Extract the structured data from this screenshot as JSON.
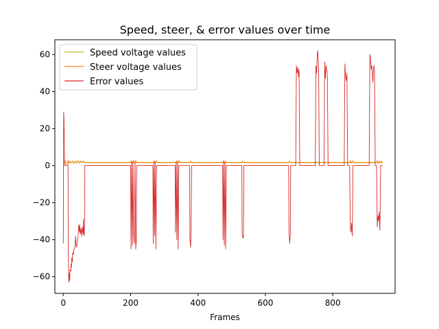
{
  "chart_data": {
    "type": "line",
    "title": "Speed, steer, & error values over time",
    "xlabel": "Frames",
    "ylabel": "",
    "xlim": [
      -25,
      985
    ],
    "ylim": [
      -69,
      68
    ],
    "x_ticks": [
      0,
      200,
      400,
      600,
      800
    ],
    "y_ticks": [
      -60,
      -40,
      -20,
      0,
      20,
      40,
      60
    ],
    "x_tick_labels": [
      "0",
      "200",
      "400",
      "600",
      "800"
    ],
    "y_tick_labels": [
      "−60",
      "−40",
      "−20",
      "0",
      "20",
      "40",
      "60"
    ],
    "grid": false,
    "legend_position": "upper-left",
    "series": [
      {
        "name": "Speed voltage values",
        "color": "#bcbd22",
        "points": [
          [
            0,
            2
          ],
          [
            3,
            2
          ],
          [
            4,
            1.8
          ],
          [
            950,
            1.8
          ]
        ]
      },
      {
        "name": "Steer voltage values",
        "color": "#ff7f0e",
        "points": [
          [
            0,
            0.5
          ],
          [
            3,
            0.5
          ],
          [
            5,
            3
          ],
          [
            7,
            1
          ],
          [
            12,
            0.5
          ],
          [
            14,
            3
          ],
          [
            16,
            1
          ],
          [
            20,
            2.5
          ],
          [
            24,
            1.5
          ],
          [
            28,
            2.5
          ],
          [
            32,
            1.2
          ],
          [
            36,
            2.5
          ],
          [
            40,
            1.3
          ],
          [
            44,
            2.8
          ],
          [
            48,
            1.3
          ],
          [
            52,
            2.5
          ],
          [
            56,
            1.6
          ],
          [
            60,
            2.5
          ],
          [
            64,
            1.5
          ],
          [
            66,
            1.5
          ],
          [
            200,
            1.5
          ],
          [
            202,
            2.8
          ],
          [
            205,
            1.2
          ],
          [
            208,
            2.8
          ],
          [
            212,
            1.5
          ],
          [
            215,
            2.8
          ],
          [
            218,
            1.5
          ],
          [
            268,
            1.5
          ],
          [
            270,
            2.8
          ],
          [
            273,
            1.5
          ],
          [
            277,
            2.7
          ],
          [
            280,
            1.5
          ],
          [
            335,
            1.5
          ],
          [
            337,
            2.8
          ],
          [
            340,
            1.2
          ],
          [
            344,
            2.8
          ],
          [
            347,
            1.5
          ],
          [
            376,
            1.5
          ],
          [
            378,
            2.5
          ],
          [
            382,
            1.5
          ],
          [
            474,
            1.5
          ],
          [
            476,
            2.8
          ],
          [
            479,
            1.2
          ],
          [
            482,
            2.5
          ],
          [
            485,
            1.5
          ],
          [
            530,
            1.5
          ],
          [
            532,
            2.5
          ],
          [
            536,
            1.5
          ],
          [
            670,
            1.5
          ],
          [
            672,
            2.5
          ],
          [
            675,
            1.5
          ],
          [
            850,
            1.5
          ],
          [
            852,
            2.8
          ],
          [
            855,
            1.2
          ],
          [
            858,
            2.7
          ],
          [
            862,
            1.5
          ],
          [
            930,
            1.5
          ],
          [
            932,
            2.8
          ],
          [
            935,
            1.2
          ],
          [
            938,
            2.5
          ],
          [
            941,
            1.4
          ],
          [
            944,
            2.4
          ],
          [
            948,
            1.5
          ]
        ]
      },
      {
        "name": "Error values",
        "color": "#d62728",
        "points": [
          [
            0,
            -42
          ],
          [
            1,
            29
          ],
          [
            2,
            25
          ],
          [
            4,
            0
          ],
          [
            14,
            0
          ],
          [
            15,
            -50
          ],
          [
            16,
            -60
          ],
          [
            17,
            -63
          ],
          [
            18,
            -58
          ],
          [
            19,
            -62
          ],
          [
            20,
            -56
          ],
          [
            22,
            -57
          ],
          [
            23,
            -53
          ],
          [
            24,
            -55
          ],
          [
            25,
            -50
          ],
          [
            27,
            -52
          ],
          [
            28,
            -47
          ],
          [
            30,
            -48
          ],
          [
            32,
            -45
          ],
          [
            35,
            -44
          ],
          [
            36,
            -38
          ],
          [
            38,
            -43
          ],
          [
            40,
            -44
          ],
          [
            42,
            -40
          ],
          [
            44,
            -38
          ],
          [
            46,
            -32
          ],
          [
            48,
            -36
          ],
          [
            49,
            -32
          ],
          [
            51,
            -37
          ],
          [
            53,
            -34
          ],
          [
            55,
            -38
          ],
          [
            57,
            -33
          ],
          [
            59,
            -37
          ],
          [
            60,
            -29
          ],
          [
            61,
            -36
          ],
          [
            62,
            -38
          ],
          [
            63,
            -33
          ],
          [
            64,
            0
          ],
          [
            200,
            0
          ],
          [
            201,
            -45
          ],
          [
            203,
            2
          ],
          [
            205,
            -43
          ],
          [
            207,
            2
          ],
          [
            209,
            -38
          ],
          [
            211,
            -42
          ],
          [
            213,
            2
          ],
          [
            215,
            -45
          ],
          [
            217,
            -40
          ],
          [
            218,
            0
          ],
          [
            266,
            0
          ],
          [
            267,
            -42
          ],
          [
            269,
            2
          ],
          [
            271,
            -38
          ],
          [
            273,
            2
          ],
          [
            275,
            -45
          ],
          [
            277,
            0
          ],
          [
            332,
            0
          ],
          [
            333,
            -36
          ],
          [
            335,
            2
          ],
          [
            337,
            -40
          ],
          [
            339,
            2
          ],
          [
            341,
            -45
          ],
          [
            343,
            0
          ],
          [
            375,
            0
          ],
          [
            376,
            -40
          ],
          [
            378,
            -44
          ],
          [
            379,
            -37
          ],
          [
            381,
            0
          ],
          [
            473,
            0
          ],
          [
            474,
            -40
          ],
          [
            476,
            2
          ],
          [
            478,
            -43
          ],
          [
            480,
            2
          ],
          [
            482,
            -45
          ],
          [
            484,
            0
          ],
          [
            530,
            0
          ],
          [
            531,
            -36
          ],
          [
            533,
            -39
          ],
          [
            535,
            -39
          ],
          [
            536,
            0
          ],
          [
            669,
            0
          ],
          [
            670,
            -35
          ],
          [
            672,
            -42
          ],
          [
            674,
            -37
          ],
          [
            675,
            0
          ],
          [
            690,
            0
          ],
          [
            692,
            54
          ],
          [
            694,
            50
          ],
          [
            696,
            53
          ],
          [
            698,
            48
          ],
          [
            700,
            52
          ],
          [
            702,
            0
          ],
          [
            748,
            0
          ],
          [
            750,
            54
          ],
          [
            752,
            50
          ],
          [
            754,
            60
          ],
          [
            756,
            62
          ],
          [
            758,
            52
          ],
          [
            760,
            0
          ],
          [
            774,
            0
          ],
          [
            776,
            56
          ],
          [
            778,
            47
          ],
          [
            780,
            54
          ],
          [
            782,
            52
          ],
          [
            784,
            48
          ],
          [
            786,
            0
          ],
          [
            834,
            0
          ],
          [
            836,
            55
          ],
          [
            838,
            48
          ],
          [
            840,
            46
          ],
          [
            842,
            50
          ],
          [
            844,
            0
          ],
          [
            850,
            0
          ],
          [
            852,
            -33
          ],
          [
            854,
            -36
          ],
          [
            856,
            -31
          ],
          [
            858,
            -38
          ],
          [
            860,
            0
          ],
          [
            908,
            0
          ],
          [
            910,
            60
          ],
          [
            912,
            58
          ],
          [
            914,
            52
          ],
          [
            916,
            54
          ],
          [
            918,
            48
          ],
          [
            919,
            45
          ],
          [
            920,
            50
          ],
          [
            922,
            54
          ],
          [
            924,
            52
          ],
          [
            926,
            0
          ],
          [
            930,
            0
          ],
          [
            932,
            -33
          ],
          [
            934,
            -27
          ],
          [
            936,
            -30
          ],
          [
            938,
            -25
          ],
          [
            940,
            -35
          ],
          [
            942,
            0
          ],
          [
            948,
            0
          ]
        ]
      }
    ]
  }
}
